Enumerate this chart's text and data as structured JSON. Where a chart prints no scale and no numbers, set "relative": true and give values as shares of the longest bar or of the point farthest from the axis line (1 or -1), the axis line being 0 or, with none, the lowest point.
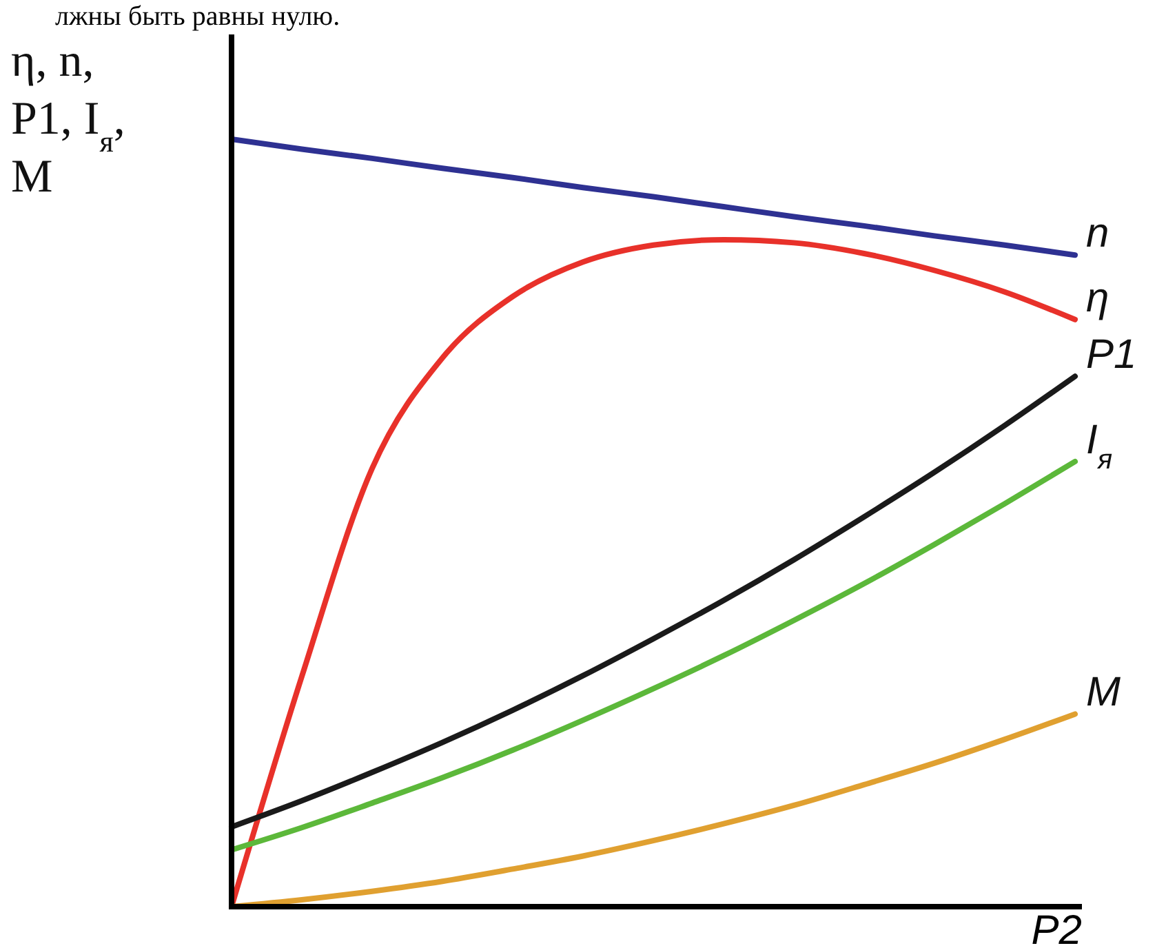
{
  "chart_data": {
    "type": "line",
    "relative": true,
    "xlabel": "P2",
    "ylabel": "η, n, P1, I$_{я}$, M",
    "annotations": [
      "лжны быть равны нулю."
    ],
    "categories": [
      null,
      null,
      null,
      null,
      null,
      null,
      null,
      null,
      null,
      null,
      null,
      null,
      null
    ],
    "series": [
      {
        "name": "n",
        "color": "#2e3192",
        "values": [
          1,
          0.987,
          0.975,
          0.962,
          0.95,
          0.937,
          0.925,
          0.912,
          0.899,
          0.887,
          0.874,
          0.862,
          0.849
        ]
      },
      {
        "name": "η",
        "color": "#e8312a",
        "values": [
          0,
          0.3,
          0.571,
          0.715,
          0.795,
          0.84,
          0.862,
          0.869,
          0.865,
          0.851,
          0.829,
          0.801,
          0.765
        ]
      },
      {
        "name": "P1",
        "color": "#1a1a1a",
        "values": [
          0.104,
          0.138,
          0.175,
          0.214,
          0.256,
          0.301,
          0.349,
          0.399,
          0.452,
          0.508,
          0.566,
          0.627,
          0.691
        ]
      },
      {
        "name": "I$_{я}$",
        "color": "#5cb83a",
        "values": [
          0.074,
          0.103,
          0.135,
          0.168,
          0.204,
          0.243,
          0.284,
          0.327,
          0.373,
          0.421,
          0.472,
          0.525,
          0.58
        ]
      },
      {
        "name": "M",
        "color": "#e0a030",
        "values": [
          0,
          0.009,
          0.02,
          0.033,
          0.049,
          0.066,
          0.086,
          0.108,
          0.132,
          0.159,
          0.187,
          0.218,
          0.251
        ]
      }
    ]
  }
}
